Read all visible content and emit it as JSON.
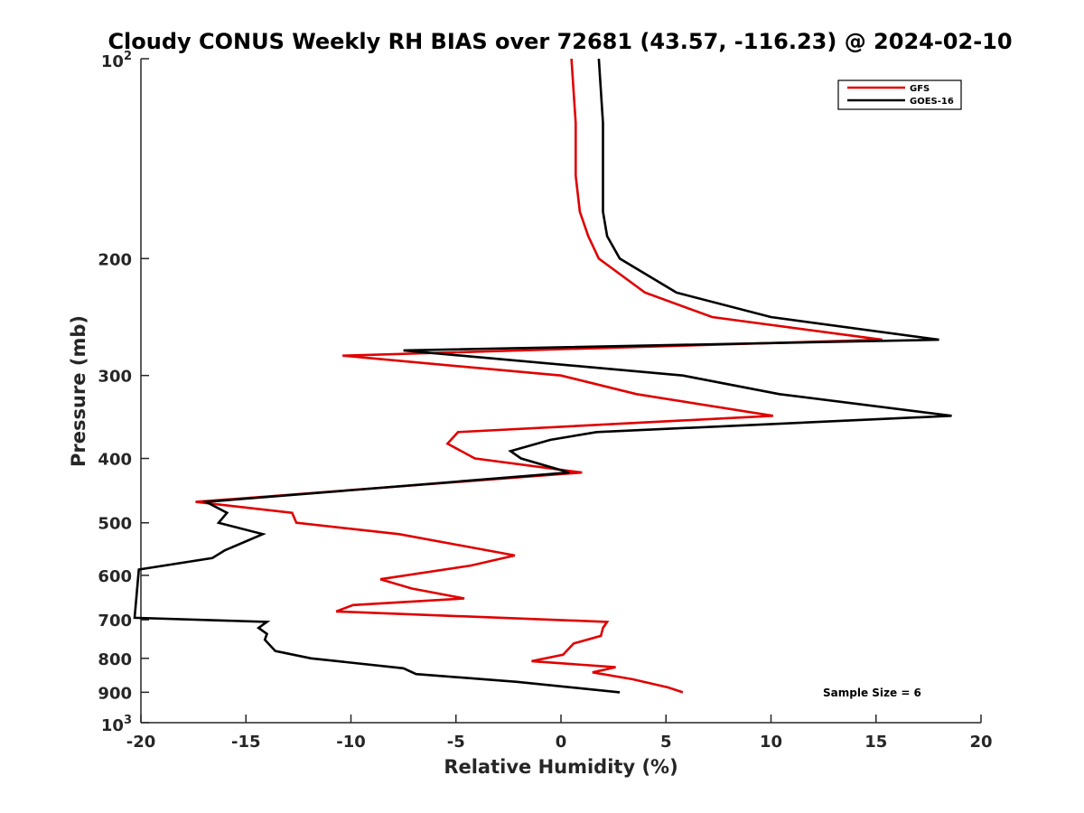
{
  "chart_data": {
    "type": "line",
    "title": "Cloudy CONUS Weekly RH BIAS over 72681 (43.57, -116.23) @ 2024-02-10",
    "xlabel": "Relative Humidity (%)",
    "ylabel": "Pressure (mb)",
    "xlim": [
      -20,
      20
    ],
    "ylim": [
      100,
      1000
    ],
    "y_scale": "log",
    "y_reversed": true,
    "grid": false,
    "legend_position": "top-right",
    "x_ticks": [
      -20,
      -15,
      -10,
      -5,
      0,
      5,
      10,
      15,
      20
    ],
    "x_tick_labels": [
      "-20",
      "-15",
      "-10",
      "-5",
      "0",
      "5",
      "10",
      "15",
      "20"
    ],
    "y_ticks": [
      200,
      300,
      400,
      500,
      600,
      700,
      800,
      900
    ],
    "y_tick_labels": [
      "200",
      "300",
      "400",
      "500",
      "600",
      "700",
      "800",
      "900"
    ],
    "y_end_labels": {
      "top": {
        "base": "10",
        "exp": "2"
      },
      "bottom": {
        "base": "10",
        "exp": "3"
      }
    },
    "series": [
      {
        "name": "GFS",
        "color": "#e00000",
        "points": [
          [
            0.5,
            100
          ],
          [
            0.7,
            125
          ],
          [
            0.7,
            150
          ],
          [
            0.9,
            170
          ],
          [
            1.3,
            185
          ],
          [
            1.8,
            200
          ],
          [
            4.0,
            225
          ],
          [
            7.2,
            245
          ],
          [
            15.3,
            265
          ],
          [
            -10.4,
            280
          ],
          [
            0.0,
            300
          ],
          [
            3.6,
            320
          ],
          [
            10.1,
            345
          ],
          [
            -4.9,
            365
          ],
          [
            -5.4,
            380
          ],
          [
            -4.1,
            400
          ],
          [
            1.0,
            420
          ],
          [
            -17.4,
            465
          ],
          [
            -12.8,
            483
          ],
          [
            -12.6,
            500
          ],
          [
            -7.7,
            520
          ],
          [
            -2.2,
            560
          ],
          [
            -4.3,
            580
          ],
          [
            -8.6,
            608
          ],
          [
            -7.1,
            628
          ],
          [
            -4.6,
            650
          ],
          [
            -9.9,
            665
          ],
          [
            -10.7,
            680
          ],
          [
            2.2,
            705
          ],
          [
            2.0,
            720
          ],
          [
            1.9,
            740
          ],
          [
            0.6,
            760
          ],
          [
            0.1,
            790
          ],
          [
            -1.4,
            808
          ],
          [
            2.6,
            825
          ],
          [
            1.5,
            840
          ],
          [
            3.4,
            860
          ],
          [
            5.1,
            885
          ],
          [
            5.8,
            900
          ]
        ]
      },
      {
        "name": "GOES-16",
        "color": "#000000",
        "points": [
          [
            1.8,
            100
          ],
          [
            2.0,
            125
          ],
          [
            2.0,
            150
          ],
          [
            2.0,
            170
          ],
          [
            2.2,
            185
          ],
          [
            2.8,
            200
          ],
          [
            5.5,
            225
          ],
          [
            10.0,
            245
          ],
          [
            18.0,
            265
          ],
          [
            -7.5,
            275
          ],
          [
            5.8,
            300
          ],
          [
            10.4,
            320
          ],
          [
            18.6,
            345
          ],
          [
            1.7,
            365
          ],
          [
            -0.5,
            375
          ],
          [
            -2.4,
            390
          ],
          [
            -1.9,
            400
          ],
          [
            0.4,
            420
          ],
          [
            -16.9,
            465
          ],
          [
            -15.9,
            483
          ],
          [
            -16.3,
            500
          ],
          [
            -14.2,
            520
          ],
          [
            -16.0,
            550
          ],
          [
            -16.6,
            565
          ],
          [
            -20.1,
            588
          ],
          [
            -20.3,
            695
          ],
          [
            -14.0,
            705
          ],
          [
            -14.4,
            720
          ],
          [
            -14.0,
            735
          ],
          [
            -14.1,
            750
          ],
          [
            -13.6,
            780
          ],
          [
            -11.9,
            800
          ],
          [
            -7.5,
            828
          ],
          [
            -6.9,
            845
          ],
          [
            -2.1,
            868
          ],
          [
            2.8,
            900
          ]
        ]
      }
    ],
    "annotation": "Sample Size = 6"
  }
}
